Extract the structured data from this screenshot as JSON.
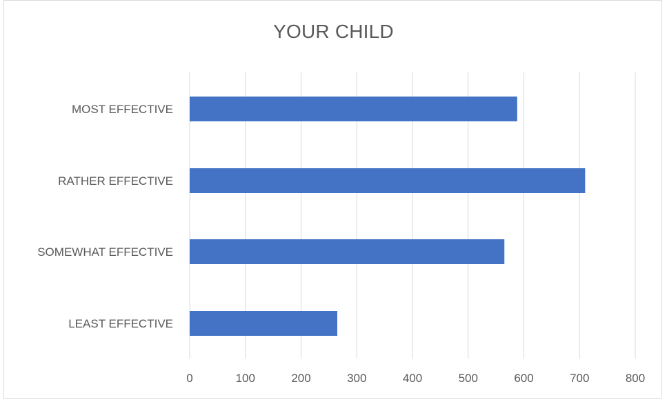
{
  "chart_data": {
    "type": "bar",
    "orientation": "horizontal",
    "title": "YOUR CHILD",
    "xlabel": "",
    "ylabel": "",
    "categories": [
      "MOST EFFECTIVE",
      "RATHER EFFECTIVE",
      "SOMEWHAT EFFECTIVE",
      "LEAST EFFECTIVE"
    ],
    "values": [
      588,
      710,
      565,
      265
    ],
    "xlim": [
      0,
      800
    ],
    "xticks": [
      0,
      100,
      200,
      300,
      400,
      500,
      600,
      700,
      800
    ],
    "grid": true,
    "legend": "none",
    "bar_color": "#4472c4",
    "grid_color": "#d9d9d9",
    "text_color": "#595959"
  }
}
